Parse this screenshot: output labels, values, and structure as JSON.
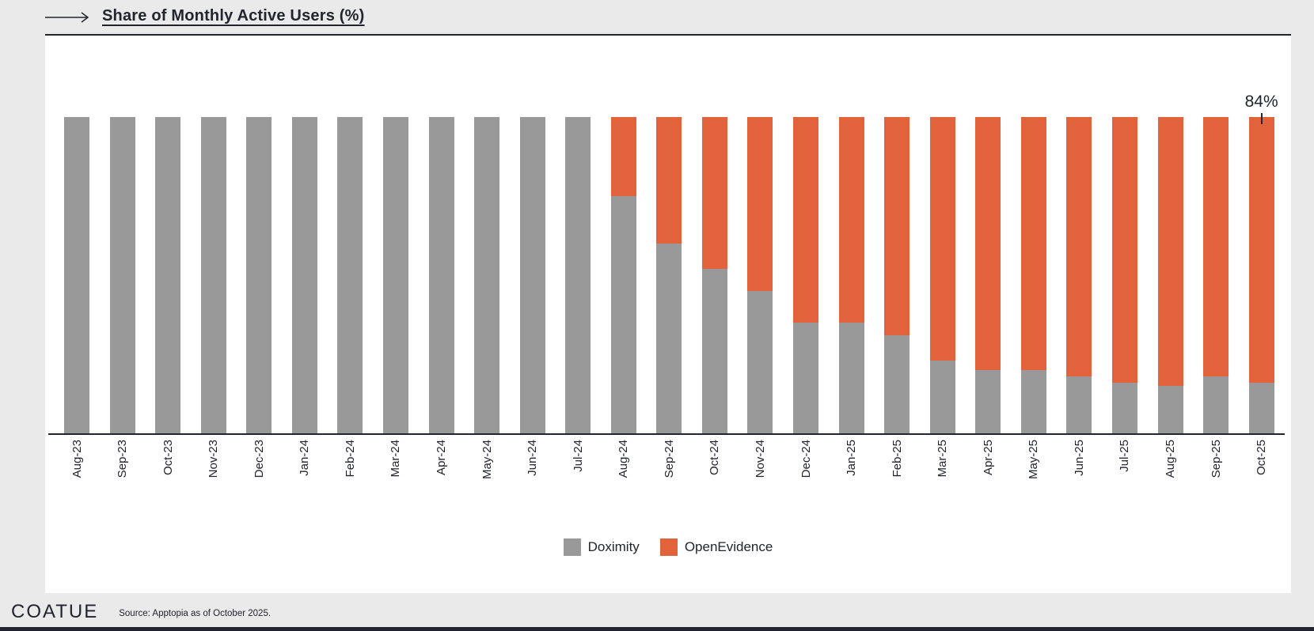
{
  "page": {
    "background_color": "#EAEAEA",
    "panel_color": "#FFFFFF",
    "text_color": "#22242E"
  },
  "header": {
    "title": "Share of Monthly Active Users (%)",
    "arrow_icon": "right-arrow"
  },
  "chart_data": {
    "type": "bar",
    "stacked": true,
    "unit": "%",
    "ylim": [
      0,
      100
    ],
    "grid": false,
    "legend_position": "bottom",
    "categories": [
      "Aug-23",
      "Sep-23",
      "Oct-23",
      "Nov-23",
      "Dec-23",
      "Jan-24",
      "Feb-24",
      "Mar-24",
      "Apr-24",
      "May-24",
      "Jun-24",
      "Jul-24",
      "Aug-24",
      "Sep-24",
      "Oct-24",
      "Nov-24",
      "Dec-24",
      "Jan-25",
      "Feb-25",
      "Mar-25",
      "Apr-25",
      "May-25",
      "Jun-25",
      "Jul-25",
      "Aug-25",
      "Sep-25",
      "Oct-25"
    ],
    "series": [
      {
        "name": "Doximity",
        "color": "#999999",
        "values": [
          100,
          100,
          100,
          100,
          100,
          100,
          100,
          100,
          100,
          100,
          100,
          100,
          75,
          60,
          52,
          45,
          35,
          35,
          31,
          23,
          20,
          20,
          18,
          16,
          15,
          18,
          16
        ]
      },
      {
        "name": "OpenEvidence",
        "color": "#E2623C",
        "values": [
          0,
          0,
          0,
          0,
          0,
          0,
          0,
          0,
          0,
          0,
          0,
          0,
          25,
          40,
          48,
          55,
          65,
          65,
          69,
          77,
          80,
          80,
          82,
          84,
          85,
          82,
          84
        ]
      }
    ],
    "annotation": {
      "text": "84%",
      "category": "Oct-25",
      "series": "OpenEvidence"
    }
  },
  "footer": {
    "logo": "COATUE",
    "source": "Source: Apptopia as of October 2025."
  }
}
